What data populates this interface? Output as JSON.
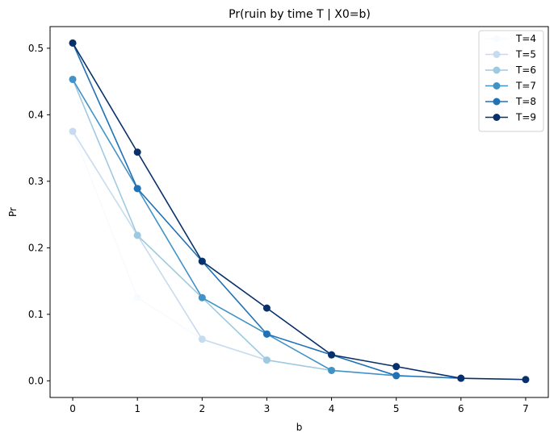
{
  "chart_data": {
    "type": "line",
    "title": "Pr(ruin by time T | X0=b)",
    "xlabel": "b",
    "ylabel": "Pr",
    "xlim": [
      -0.35,
      7.35
    ],
    "ylim": [
      -0.025,
      0.5325
    ],
    "xticks": [
      0,
      1,
      2,
      3,
      4,
      5,
      6,
      7
    ],
    "yticks": [
      0.0,
      0.1,
      0.2,
      0.3,
      0.4,
      0.5
    ],
    "ytick_labels": [
      "0.0",
      "0.1",
      "0.2",
      "0.3",
      "0.4",
      "0.5"
    ],
    "grid": false,
    "legend_position": "top-right",
    "series": [
      {
        "name": "T=4",
        "color": "#f7fbff",
        "x": [
          0,
          1,
          2
        ],
        "values": [
          0.375,
          0.125,
          0.0625
        ]
      },
      {
        "name": "T=5",
        "color": "#c6dbef",
        "x": [
          0,
          1,
          2,
          3
        ],
        "values": [
          0.375,
          0.21875,
          0.0625,
          0.03125
        ]
      },
      {
        "name": "T=6",
        "color": "#9ecae1",
        "x": [
          0,
          1,
          2,
          3,
          4
        ],
        "values": [
          0.453125,
          0.21875,
          0.125,
          0.03125,
          0.015625
        ]
      },
      {
        "name": "T=7",
        "color": "#4292c6",
        "x": [
          0,
          1,
          2,
          3,
          4,
          5
        ],
        "values": [
          0.453125,
          0.2890625,
          0.125,
          0.0703125,
          0.015625,
          0.0078125
        ]
      },
      {
        "name": "T=8",
        "color": "#2171b5",
        "x": [
          0,
          1,
          2,
          3,
          4,
          5,
          6
        ],
        "values": [
          0.5078125,
          0.2890625,
          0.1796875,
          0.0703125,
          0.0390625,
          0.0078125,
          0.00390625
        ]
      },
      {
        "name": "T=9",
        "color": "#08306b",
        "x": [
          0,
          1,
          2,
          3,
          4,
          5,
          6,
          7
        ],
        "values": [
          0.5078125,
          0.34375,
          0.1796875,
          0.109375,
          0.0390625,
          0.0214844,
          0.00390625,
          0.00195312
        ]
      }
    ]
  }
}
